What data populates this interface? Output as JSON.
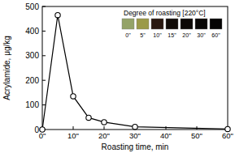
{
  "chart_data": {
    "type": "line",
    "x_label": "Roasting time, min",
    "y_label": "Acrylamide, μg/kg",
    "x": [
      0,
      5,
      10,
      15,
      20,
      30,
      60
    ],
    "values": [
      0,
      465,
      135,
      48,
      30,
      11,
      2
    ],
    "color": "#000000",
    "marker": "open-circle",
    "xlim": [
      0,
      60
    ],
    "xticks": [
      {
        "value": 0,
        "label": "0\""
      },
      {
        "value": 10,
        "label": "10\""
      },
      {
        "value": 20,
        "label": "20\""
      },
      {
        "value": 30,
        "label": "30\""
      },
      {
        "value": 40,
        "label": "40\""
      },
      {
        "value": 50,
        "label": "50\""
      },
      {
        "value": 60,
        "label": "60\""
      }
    ],
    "ylim": [
      0,
      500
    ],
    "yticks": [
      0,
      100,
      200,
      300,
      400,
      500
    ],
    "grid": false,
    "inset": {
      "title": "Degree of roasting [220°C]",
      "samples": [
        {
          "label": "0\"",
          "color": "#94a368"
        },
        {
          "label": "5\"",
          "color": "#9b9a48"
        },
        {
          "label": "10\"",
          "color": "#2a1810"
        },
        {
          "label": "15\"",
          "color": "#120c08"
        },
        {
          "label": "20\"",
          "color": "#0c0806"
        },
        {
          "label": "30\"",
          "color": "#080605"
        },
        {
          "label": "60\"",
          "color": "#050404"
        }
      ]
    }
  }
}
